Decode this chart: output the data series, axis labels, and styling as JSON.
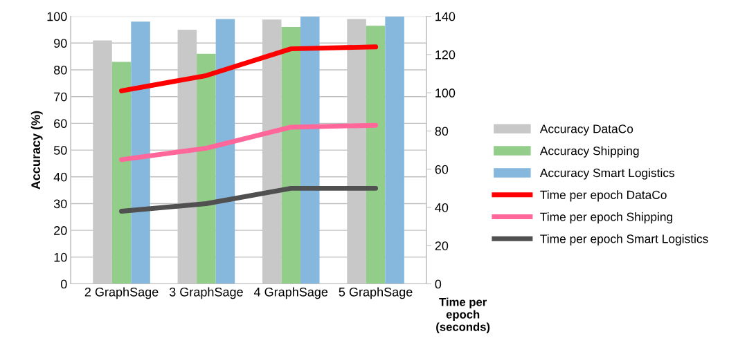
{
  "chart_data": {
    "type": "bar",
    "ylabel": "Accuracy (%)",
    "y2label": "Time per epoch (seconds)",
    "categories": [
      "2 GraphSage",
      "3 GraphSage",
      "4 GraphSage",
      "5 GraphSage"
    ],
    "series": [
      {
        "name": "Accuracy DataCo",
        "color": "#c8c8c8",
        "values": [
          91,
          95,
          98.8,
          99
        ]
      },
      {
        "name": "Accuracy Shipping",
        "color": "#93cd8a",
        "values": [
          83,
          86,
          96,
          96.5
        ]
      },
      {
        "name": "Accuracy Smart Logistics",
        "color": "#86b8de",
        "values": [
          98,
          99,
          100,
          100
        ]
      },
      {
        "name": "Time per epoch DataCo",
        "type": "line",
        "axis": "y2",
        "color": "#ff0000",
        "values": [
          101,
          109,
          123,
          124
        ]
      },
      {
        "name": "Time per epoch Shipping",
        "type": "line",
        "axis": "y2",
        "color": "#ff6699",
        "values": [
          65,
          71,
          82,
          83
        ]
      },
      {
        "name": "Time per epoch Smart Logistics",
        "type": "line",
        "axis": "y2",
        "color": "#505050",
        "values": [
          38,
          42,
          50,
          50
        ]
      }
    ],
    "ylim": [
      0,
      100
    ],
    "yticks": [
      0,
      10,
      20,
      30,
      40,
      50,
      60,
      70,
      80,
      90,
      100
    ],
    "y2lim": [
      0,
      140
    ],
    "y2ticks": [
      0,
      20,
      40,
      60,
      80,
      100,
      120,
      140
    ],
    "grid": "y",
    "legend": "right",
    "marker": "none",
    "line_style": "solid"
  }
}
